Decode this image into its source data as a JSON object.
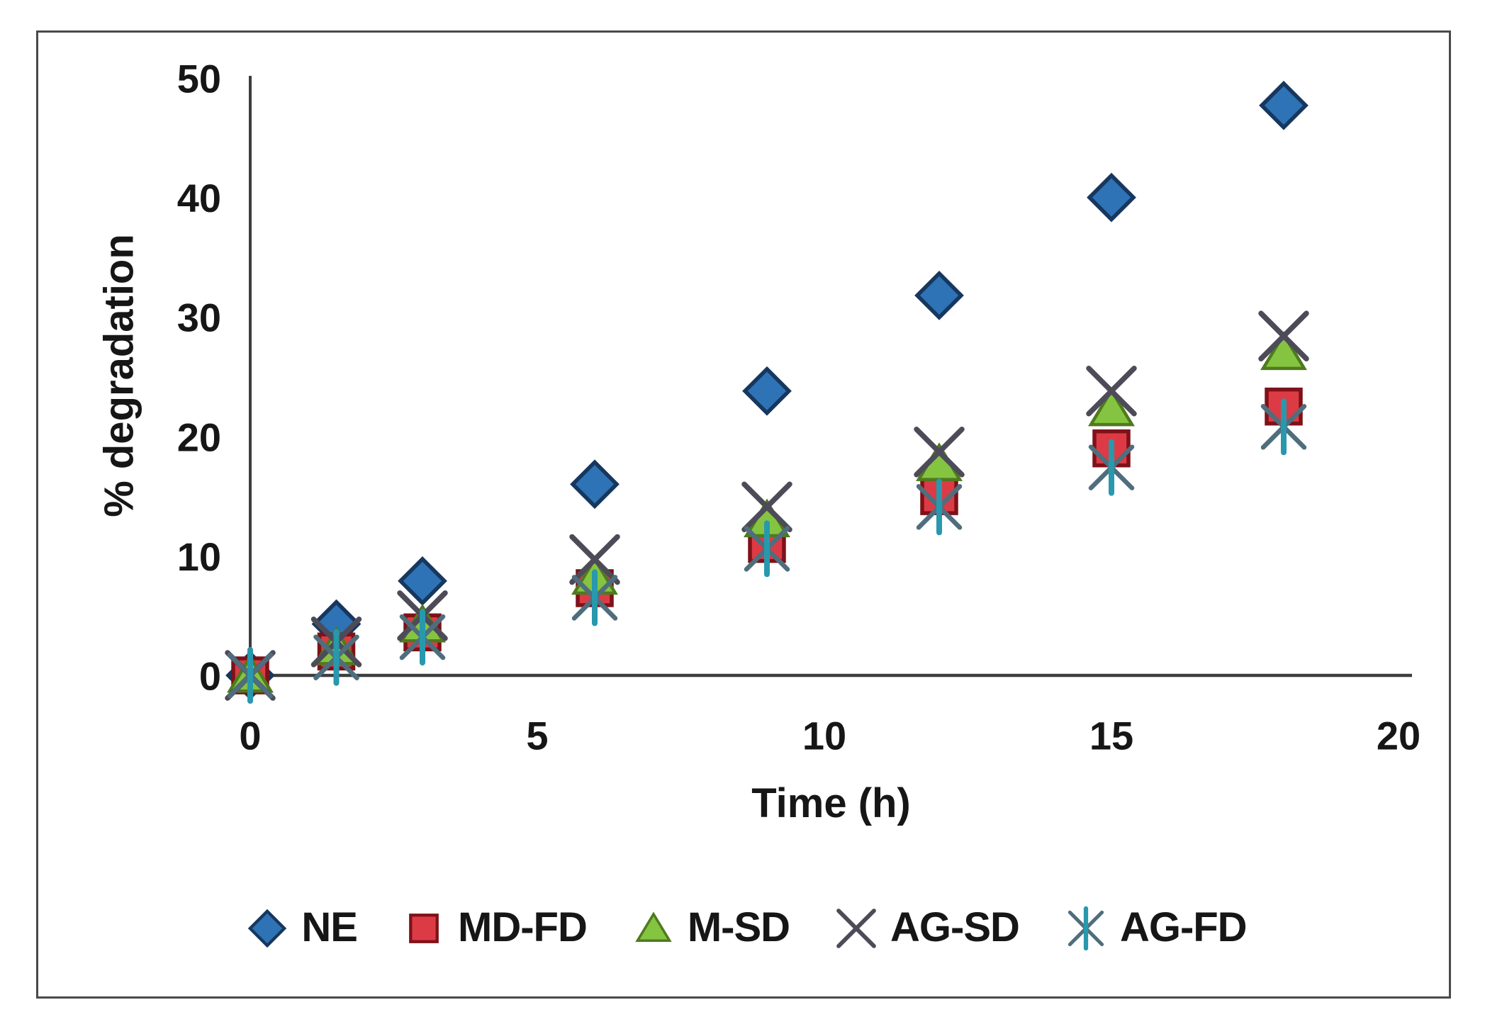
{
  "figure": {
    "background": "#ffffff",
    "border_color": "#4a4a4a",
    "axis_color": "#3d3d3d",
    "text_color": "#161616"
  },
  "chart_data": {
    "type": "scatter",
    "title": "",
    "xlabel": "Time (h)",
    "ylabel": "% degradation",
    "xlim": [
      0,
      20
    ],
    "ylim": [
      0,
      50
    ],
    "xticks": [
      0,
      5,
      10,
      15,
      20
    ],
    "yticks": [
      0,
      10,
      20,
      30,
      40,
      50
    ],
    "grid": false,
    "legend_position": "bottom",
    "x": [
      0,
      1.5,
      3,
      6,
      9,
      12,
      15,
      18
    ],
    "series": [
      {
        "name": "NE",
        "marker": "diamond",
        "fill": "#2e73b5",
        "stroke": "#17375e",
        "values": [
          0,
          4.3,
          7.9,
          16,
          23.8,
          31.8,
          40,
          47.7
        ]
      },
      {
        "name": "MD-FD",
        "marker": "square",
        "fill": "#dc3b45",
        "stroke": "#7f1118",
        "values": [
          0,
          2,
          3.6,
          7.3,
          11,
          15,
          19,
          22.5
        ]
      },
      {
        "name": "M-SD",
        "marker": "triangle",
        "fill": "#85c441",
        "stroke": "#4f7a1e",
        "values": [
          0,
          2.3,
          4.2,
          8.2,
          13,
          17.7,
          22.3,
          27
        ]
      },
      {
        "name": "AG-SD",
        "marker": "x",
        "stroke": "#4d4b58",
        "values": [
          0,
          2.8,
          5,
          9.7,
          14.1,
          18.7,
          23.8,
          28.4
        ]
      },
      {
        "name": "AG-FD",
        "marker": "asterisk",
        "stroke": "#4f6e7d",
        "stroke2": "#2898ad",
        "values": [
          0,
          1.5,
          3.2,
          6.5,
          10.6,
          14.1,
          17.4,
          20.8
        ]
      }
    ]
  }
}
